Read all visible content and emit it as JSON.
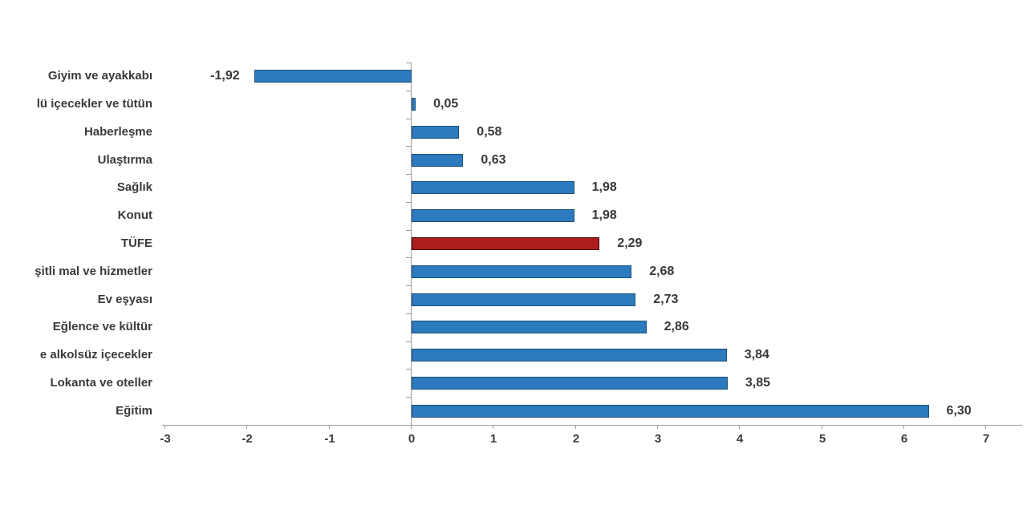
{
  "chart_data": {
    "type": "bar",
    "orientation": "horizontal",
    "title": "",
    "xlabel": "",
    "ylabel": "",
    "categories": [
      "Giyim ve ayakkabı",
      "lü içecekler ve tütün",
      "Haberleşme",
      "Ulaştırma",
      "Sağlık",
      "Konut",
      "TÜFE",
      "şitli mal ve hizmetler",
      "Ev eşyası",
      "Eğlence ve kültür",
      "e alkolsüz içecekler",
      "Lokanta ve oteller",
      "Eğitim"
    ],
    "values": [
      -1.92,
      0.05,
      0.58,
      0.63,
      1.98,
      1.98,
      2.29,
      2.68,
      2.73,
      2.86,
      3.84,
      3.85,
      6.3
    ],
    "value_labels": [
      "-1,92",
      "0,05",
      "0,58",
      "0,63",
      "1,98",
      "1,98",
      "2,29",
      "2,68",
      "2,73",
      "2,86",
      "3,84",
      "3,85",
      "6,30"
    ],
    "highlight_index": 6,
    "xlim": [
      -3,
      7
    ],
    "x_ticks": [
      -3,
      -2,
      -1,
      0,
      1,
      2,
      3,
      4,
      5,
      6,
      7
    ],
    "x_tick_labels": [
      "-3",
      "-2",
      "-1",
      "0",
      "1",
      "2",
      "3",
      "4",
      "5",
      "6",
      "7"
    ],
    "grid": false,
    "legend": false,
    "colors": {
      "bar_fill": "#2C7BBF",
      "bar_border": "#1C4F77",
      "highlight_fill": "#AC1E1E",
      "highlight_border": "#400808",
      "axis": "#9b9b9b",
      "text": "#3a3a3a"
    }
  }
}
